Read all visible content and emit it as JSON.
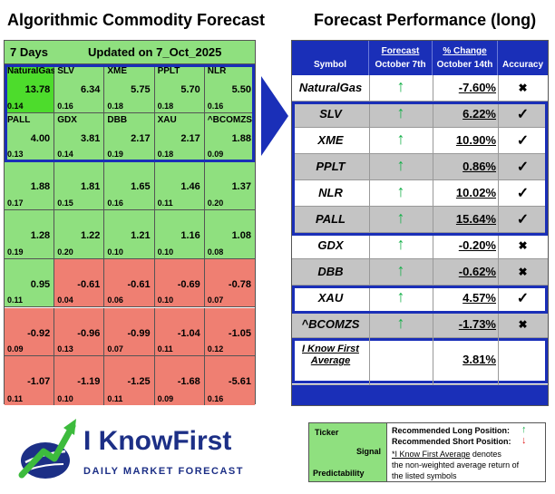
{
  "titles": {
    "left": "Algorithmic Commodity Forecast",
    "right": "Forecast Performance (long)"
  },
  "heatmap": {
    "horizon": "7 Days",
    "updated": "Updated on 7_Oct_2025",
    "cells": [
      {
        "symbol": "NaturalGas",
        "signal": "13.78",
        "predictability": "0.14",
        "color": "#4ddc2c"
      },
      {
        "symbol": "SLV",
        "signal": "6.34",
        "predictability": "0.16",
        "color": "#8fe07f"
      },
      {
        "symbol": "XME",
        "signal": "5.75",
        "predictability": "0.18",
        "color": "#8fe07f"
      },
      {
        "symbol": "PPLT",
        "signal": "5.70",
        "predictability": "0.18",
        "color": "#8fe07f"
      },
      {
        "symbol": "NLR",
        "signal": "5.50",
        "predictability": "0.16",
        "color": "#8fe07f"
      },
      {
        "symbol": "PALL",
        "signal": "4.00",
        "predictability": "0.13",
        "color": "#8fe07f"
      },
      {
        "symbol": "GDX",
        "signal": "3.81",
        "predictability": "0.14",
        "color": "#8fe07f"
      },
      {
        "symbol": "DBB",
        "signal": "2.17",
        "predictability": "0.19",
        "color": "#8fe07f"
      },
      {
        "symbol": "XAU",
        "signal": "2.17",
        "predictability": "0.18",
        "color": "#8fe07f"
      },
      {
        "symbol": "^BCOMZS",
        "signal": "1.88",
        "predictability": "0.09",
        "color": "#8fe07f"
      },
      {
        "symbol": "",
        "signal": "1.88",
        "predictability": "0.17",
        "color": "#8fe07f"
      },
      {
        "symbol": "",
        "signal": "1.81",
        "predictability": "0.15",
        "color": "#8fe07f"
      },
      {
        "symbol": "",
        "signal": "1.65",
        "predictability": "0.16",
        "color": "#8fe07f"
      },
      {
        "symbol": "",
        "signal": "1.46",
        "predictability": "0.11",
        "color": "#8fe07f"
      },
      {
        "symbol": "",
        "signal": "1.37",
        "predictability": "0.20",
        "color": "#8fe07f"
      },
      {
        "symbol": "",
        "signal": "1.28",
        "predictability": "0.19",
        "color": "#8fe07f"
      },
      {
        "symbol": "",
        "signal": "1.22",
        "predictability": "0.20",
        "color": "#8fe07f"
      },
      {
        "symbol": "",
        "signal": "1.21",
        "predictability": "0.10",
        "color": "#8fe07f"
      },
      {
        "symbol": "",
        "signal": "1.16",
        "predictability": "0.10",
        "color": "#8fe07f"
      },
      {
        "symbol": "",
        "signal": "1.08",
        "predictability": "0.08",
        "color": "#8fe07f"
      },
      {
        "symbol": "",
        "signal": "0.95",
        "predictability": "0.11",
        "color": "#8fe07f"
      },
      {
        "symbol": "",
        "signal": "-0.61",
        "predictability": "0.04",
        "color": "#ef7f72"
      },
      {
        "symbol": "",
        "signal": "-0.61",
        "predictability": "0.06",
        "color": "#ef7f72"
      },
      {
        "symbol": "",
        "signal": "-0.69",
        "predictability": "0.10",
        "color": "#ef7f72"
      },
      {
        "symbol": "",
        "signal": "-0.78",
        "predictability": "0.07",
        "color": "#ef7f72"
      },
      {
        "symbol": "",
        "signal": "-0.92",
        "predictability": "0.09",
        "color": "#ef7f72"
      },
      {
        "symbol": "",
        "signal": "-0.96",
        "predictability": "0.13",
        "color": "#ef7f72"
      },
      {
        "symbol": "",
        "signal": "-0.99",
        "predictability": "0.07",
        "color": "#ef7f72"
      },
      {
        "symbol": "",
        "signal": "-1.04",
        "predictability": "0.11",
        "color": "#ef7f72"
      },
      {
        "symbol": "",
        "signal": "-1.05",
        "predictability": "0.12",
        "color": "#ef7f72"
      },
      {
        "symbol": "",
        "signal": "-1.07",
        "predictability": "0.11",
        "color": "#ef7f72"
      },
      {
        "symbol": "",
        "signal": "-1.19",
        "predictability": "0.10",
        "color": "#ef7f72"
      },
      {
        "symbol": "",
        "signal": "-1.25",
        "predictability": "0.11",
        "color": "#ef7f72"
      },
      {
        "symbol": "",
        "signal": "-1.68",
        "predictability": "0.09",
        "color": "#ef7f72"
      },
      {
        "symbol": "",
        "signal": "-5.61",
        "predictability": "0.16",
        "color": "#ef7f72"
      }
    ]
  },
  "performance": {
    "headers": {
      "symbol": "Symbol",
      "forecast_top": "Forecast",
      "forecast_bottom": "October 7th",
      "change_top": "% Change",
      "change_bottom": "October 14th",
      "accuracy": "Accuracy"
    },
    "up_arrow": "↑",
    "rows": [
      {
        "symbol": "NaturalGas",
        "change": "-7.60%",
        "accuracy": "✖",
        "highlighted": false,
        "shaded": false
      },
      {
        "symbol": "SLV",
        "change": "6.22%",
        "accuracy": "✓",
        "highlighted": true,
        "shaded": true
      },
      {
        "symbol": "XME",
        "change": "10.90%",
        "accuracy": "✓",
        "highlighted": true,
        "shaded": false
      },
      {
        "symbol": "PPLT",
        "change": "0.86%",
        "accuracy": "✓",
        "highlighted": true,
        "shaded": true
      },
      {
        "symbol": "NLR",
        "change": "10.02%",
        "accuracy": "✓",
        "highlighted": true,
        "shaded": false
      },
      {
        "symbol": "PALL",
        "change": "15.64%",
        "accuracy": "✓",
        "highlighted": true,
        "shaded": true
      },
      {
        "symbol": "GDX",
        "change": "-0.20%",
        "accuracy": "✖",
        "highlighted": false,
        "shaded": false
      },
      {
        "symbol": "DBB",
        "change": "-0.62%",
        "accuracy": "✖",
        "highlighted": false,
        "shaded": true
      },
      {
        "symbol": "XAU",
        "change": "4.57%",
        "accuracy": "✓",
        "highlighted": true,
        "shaded": false
      },
      {
        "symbol": "^BCOMZS",
        "change": "-1.73%",
        "accuracy": "✖",
        "highlighted": false,
        "shaded": true
      }
    ],
    "average": {
      "label_line1": "I Know First",
      "label_line2": "Average",
      "change": "3.81%"
    }
  },
  "logo": {
    "name": "I KnowFirst",
    "tagline": "DAILY MARKET FORECAST"
  },
  "legend": {
    "ticker": "Ticker",
    "signal": "Signal",
    "predictability": "Predictability",
    "long_position": "Recommended Long Position:",
    "short_position": "Recommended Short Position:",
    "up_arrow": "↑",
    "down_arrow": "↓",
    "average_name": "*I Know First Average",
    "note_1": "denotes",
    "note_2": "the non-weighted average return of",
    "note_3": "the listed symbols"
  },
  "colors": {
    "accent_blue": "#1a2fb8",
    "positive_green": "#8fe07f",
    "top_green": "#4ddc2c",
    "negative_red": "#ef7f72",
    "arrow_green": "#16b04a",
    "arrow_red": "#e02020"
  }
}
